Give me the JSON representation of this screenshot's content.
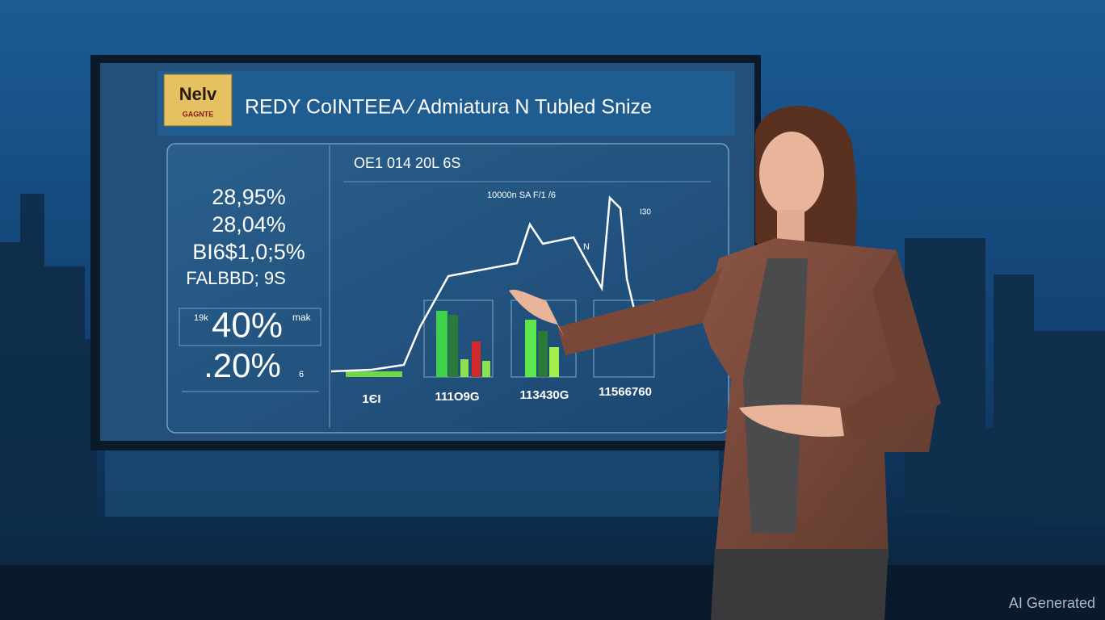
{
  "screen": {
    "logo": {
      "top": "Nelv",
      "bottom": "GAGNTE"
    },
    "title": "REDY CoINTEEA ⁄ Admiatura N Tubled Snize",
    "stats": [
      "28,95%",
      "28,04%",
      "BI6$1,0;5%",
      "FALBBD; 9S"
    ],
    "big_stat": {
      "prefix": "19k",
      "value": "40%",
      "suffix": "mak"
    },
    "small_stat": {
      "value": ".20%",
      "suffix": "6"
    },
    "chart": {
      "heading": "OE1 014 20L 6S",
      "label": "10000n SA F/1 /6",
      "side_label": "N",
      "right_label": "I30",
      "x_labels": [
        "1ЄI",
        "111O9G",
        "113430G",
        "11566760"
      ]
    }
  },
  "watermark": "AI Generated"
}
